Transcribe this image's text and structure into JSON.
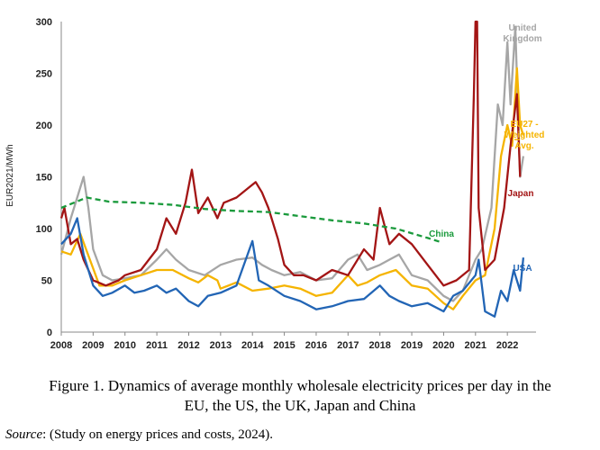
{
  "chart_data": {
    "type": "line",
    "ylabel": "EUR2021/MWh",
    "xlabel": "",
    "ylim": [
      0,
      300
    ],
    "xlim": [
      2008,
      2022.9
    ],
    "yticks": [
      0,
      50,
      100,
      150,
      200,
      250,
      300
    ],
    "xticks": [
      2008,
      2009,
      2010,
      2011,
      2012,
      2013,
      2014,
      2015,
      2016,
      2017,
      2018,
      2019,
      2020,
      2021,
      2022
    ],
    "grid": false,
    "legend": "inline-labels",
    "series": [
      {
        "name": "United Kingdom",
        "label_lines": [
          "United",
          "Kingdom"
        ],
        "color": "#a6a6a6",
        "points": [
          [
            2008.0,
            75
          ],
          [
            2008.3,
            110
          ],
          [
            2008.5,
            130
          ],
          [
            2008.7,
            150
          ],
          [
            2008.85,
            120
          ],
          [
            2009.0,
            80
          ],
          [
            2009.3,
            55
          ],
          [
            2009.6,
            50
          ],
          [
            2010.0,
            52
          ],
          [
            2010.5,
            55
          ],
          [
            2011.0,
            70
          ],
          [
            2011.3,
            80
          ],
          [
            2011.6,
            70
          ],
          [
            2012.0,
            60
          ],
          [
            2012.5,
            55
          ],
          [
            2013.0,
            65
          ],
          [
            2013.5,
            70
          ],
          [
            2014.0,
            72
          ],
          [
            2014.3,
            65
          ],
          [
            2014.6,
            60
          ],
          [
            2015.0,
            55
          ],
          [
            2015.5,
            58
          ],
          [
            2016.0,
            50
          ],
          [
            2016.5,
            52
          ],
          [
            2017.0,
            70
          ],
          [
            2017.3,
            75
          ],
          [
            2017.6,
            60
          ],
          [
            2018.0,
            65
          ],
          [
            2018.3,
            70
          ],
          [
            2018.6,
            75
          ],
          [
            2019.0,
            55
          ],
          [
            2019.5,
            50
          ],
          [
            2020.0,
            35
          ],
          [
            2020.3,
            30
          ],
          [
            2020.6,
            40
          ],
          [
            2021.0,
            70
          ],
          [
            2021.2,
            80
          ],
          [
            2021.5,
            120
          ],
          [
            2021.7,
            220
          ],
          [
            2021.85,
            200
          ],
          [
            2022.0,
            280
          ],
          [
            2022.1,
            220
          ],
          [
            2022.25,
            295
          ],
          [
            2022.4,
            150
          ],
          [
            2022.5,
            170
          ]
        ]
      },
      {
        "name": "EU27 - Weighted Avg.",
        "label_lines": [
          "EU27 -",
          "Weighted",
          "Avg."
        ],
        "color": "#f5b400",
        "points": [
          [
            2008.0,
            78
          ],
          [
            2008.3,
            75
          ],
          [
            2008.6,
            95
          ],
          [
            2008.9,
            70
          ],
          [
            2009.2,
            45
          ],
          [
            2009.6,
            45
          ],
          [
            2010.0,
            50
          ],
          [
            2010.5,
            55
          ],
          [
            2011.0,
            60
          ],
          [
            2011.5,
            60
          ],
          [
            2012.0,
            52
          ],
          [
            2012.3,
            48
          ],
          [
            2012.6,
            55
          ],
          [
            2012.9,
            50
          ],
          [
            2013.0,
            42
          ],
          [
            2013.5,
            48
          ],
          [
            2014.0,
            40
          ],
          [
            2014.5,
            42
          ],
          [
            2015.0,
            45
          ],
          [
            2015.5,
            42
          ],
          [
            2016.0,
            35
          ],
          [
            2016.5,
            38
          ],
          [
            2017.0,
            55
          ],
          [
            2017.3,
            45
          ],
          [
            2017.6,
            48
          ],
          [
            2018.0,
            55
          ],
          [
            2018.5,
            60
          ],
          [
            2019.0,
            45
          ],
          [
            2019.5,
            42
          ],
          [
            2020.0,
            28
          ],
          [
            2020.3,
            22
          ],
          [
            2020.6,
            35
          ],
          [
            2021.0,
            50
          ],
          [
            2021.3,
            55
          ],
          [
            2021.6,
            100
          ],
          [
            2021.8,
            170
          ],
          [
            2022.0,
            200
          ],
          [
            2022.15,
            180
          ],
          [
            2022.3,
            255
          ],
          [
            2022.4,
            200
          ],
          [
            2022.5,
            190
          ]
        ]
      },
      {
        "name": "Japan",
        "label_lines": [
          "Japan"
        ],
        "color": "#a31515",
        "points": [
          [
            2008.0,
            110
          ],
          [
            2008.1,
            120
          ],
          [
            2008.3,
            85
          ],
          [
            2008.5,
            90
          ],
          [
            2008.7,
            70
          ],
          [
            2009.0,
            50
          ],
          [
            2009.4,
            45
          ],
          [
            2009.8,
            50
          ],
          [
            2010.0,
            55
          ],
          [
            2010.5,
            60
          ],
          [
            2011.0,
            80
          ],
          [
            2011.3,
            110
          ],
          [
            2011.6,
            95
          ],
          [
            2011.9,
            125
          ],
          [
            2012.1,
            157
          ],
          [
            2012.3,
            115
          ],
          [
            2012.6,
            130
          ],
          [
            2012.9,
            110
          ],
          [
            2013.1,
            125
          ],
          [
            2013.5,
            130
          ],
          [
            2013.9,
            140
          ],
          [
            2014.1,
            145
          ],
          [
            2014.3,
            135
          ],
          [
            2014.5,
            120
          ],
          [
            2014.8,
            90
          ],
          [
            2015.0,
            65
          ],
          [
            2015.3,
            55
          ],
          [
            2015.6,
            55
          ],
          [
            2016.0,
            50
          ],
          [
            2016.5,
            60
          ],
          [
            2017.0,
            55
          ],
          [
            2017.5,
            80
          ],
          [
            2017.8,
            70
          ],
          [
            2018.0,
            120
          ],
          [
            2018.3,
            85
          ],
          [
            2018.6,
            95
          ],
          [
            2019.0,
            85
          ],
          [
            2019.5,
            65
          ],
          [
            2020.0,
            45
          ],
          [
            2020.4,
            50
          ],
          [
            2020.8,
            60
          ],
          [
            2020.95,
            230
          ],
          [
            2021.0,
            300
          ],
          [
            2021.05,
            300
          ],
          [
            2021.1,
            120
          ],
          [
            2021.3,
            60
          ],
          [
            2021.6,
            70
          ],
          [
            2021.9,
            120
          ],
          [
            2022.1,
            180
          ],
          [
            2022.3,
            230
          ],
          [
            2022.4,
            150
          ]
        ]
      },
      {
        "name": "China",
        "label_lines": [
          "China"
        ],
        "color": "#1a9a3c",
        "dashed": true,
        "points": [
          [
            2008.0,
            120
          ],
          [
            2008.8,
            130
          ],
          [
            2009.5,
            126
          ],
          [
            2010.5,
            125
          ],
          [
            2011.5,
            123
          ],
          [
            2012.5,
            119
          ],
          [
            2013.5,
            117
          ],
          [
            2014.5,
            116
          ],
          [
            2015.5,
            112
          ],
          [
            2016.5,
            108
          ],
          [
            2017.5,
            105
          ],
          [
            2018.5,
            100
          ],
          [
            2019.5,
            91
          ],
          [
            2019.9,
            87
          ]
        ]
      },
      {
        "name": "USA",
        "label_lines": [
          "USA"
        ],
        "color": "#2265b5",
        "points": [
          [
            2008.0,
            85
          ],
          [
            2008.3,
            95
          ],
          [
            2008.5,
            110
          ],
          [
            2008.7,
            75
          ],
          [
            2009.0,
            45
          ],
          [
            2009.3,
            35
          ],
          [
            2009.6,
            38
          ],
          [
            2010.0,
            45
          ],
          [
            2010.3,
            38
          ],
          [
            2010.6,
            40
          ],
          [
            2011.0,
            45
          ],
          [
            2011.3,
            38
          ],
          [
            2011.6,
            42
          ],
          [
            2012.0,
            30
          ],
          [
            2012.3,
            25
          ],
          [
            2012.6,
            35
          ],
          [
            2013.0,
            38
          ],
          [
            2013.5,
            45
          ],
          [
            2014.0,
            88
          ],
          [
            2014.2,
            50
          ],
          [
            2014.5,
            45
          ],
          [
            2015.0,
            35
          ],
          [
            2015.5,
            30
          ],
          [
            2016.0,
            22
          ],
          [
            2016.5,
            25
          ],
          [
            2017.0,
            30
          ],
          [
            2017.5,
            32
          ],
          [
            2018.0,
            45
          ],
          [
            2018.3,
            35
          ],
          [
            2018.6,
            30
          ],
          [
            2019.0,
            25
          ],
          [
            2019.5,
            28
          ],
          [
            2020.0,
            20
          ],
          [
            2020.3,
            35
          ],
          [
            2020.6,
            40
          ],
          [
            2021.0,
            55
          ],
          [
            2021.1,
            70
          ],
          [
            2021.3,
            20
          ],
          [
            2021.6,
            15
          ],
          [
            2021.8,
            40
          ],
          [
            2022.0,
            30
          ],
          [
            2022.2,
            60
          ],
          [
            2022.4,
            40
          ],
          [
            2022.5,
            72
          ]
        ]
      }
    ]
  },
  "caption": {
    "line1": "Figure 1.  Dynamics of average monthly wholesale electricity prices per day in the",
    "line2": "EU, the US, the UK, Japan and China"
  },
  "source": {
    "label": "Source",
    "text": ": (Study on energy prices and costs, 2024)."
  }
}
